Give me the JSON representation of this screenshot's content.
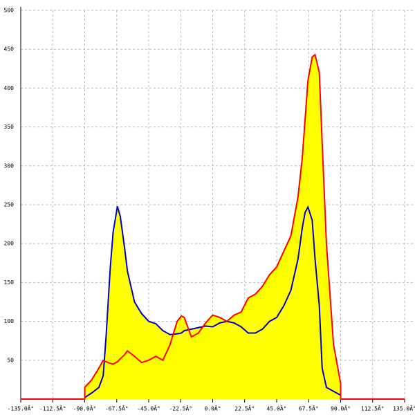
{
  "chart_data": {
    "type": "line",
    "x": [
      -135,
      -90,
      -90,
      -85,
      -80,
      -77,
      -75,
      -72,
      -70,
      -67,
      -65,
      -62,
      -60,
      -55,
      -50,
      -45,
      -40,
      -35,
      -30,
      -25,
      -22,
      -20,
      -15,
      -10,
      -5,
      0,
      5,
      10,
      15,
      20,
      25,
      30,
      35,
      40,
      45,
      50,
      55,
      60,
      63,
      65,
      67,
      70,
      72,
      75,
      77,
      80,
      85,
      90,
      90,
      135
    ],
    "series": [
      {
        "color": "#0000cc",
        "values": [
          0,
          0,
          2,
          8,
          15,
          30,
          80,
          170,
          215,
          248,
          235,
          195,
          165,
          125,
          110,
          100,
          97,
          88,
          83,
          84,
          85,
          88,
          90,
          92,
          94,
          93,
          98,
          100,
          98,
          93,
          85,
          85,
          90,
          100,
          105,
          120,
          140,
          180,
          220,
          240,
          247,
          230,
          180,
          120,
          40,
          15,
          10,
          5,
          0,
          0
        ]
      },
      {
        "color": "#ff0000",
        "values": [
          0,
          0,
          15,
          25,
          40,
          50,
          48,
          46,
          45,
          48,
          52,
          57,
          62,
          55,
          47,
          50,
          55,
          50,
          70,
          100,
          107,
          105,
          80,
          85,
          98,
          108,
          105,
          100,
          108,
          112,
          130,
          135,
          145,
          160,
          170,
          190,
          210,
          260,
          310,
          360,
          410,
          440,
          443,
          420,
          330,
          200,
          70,
          20,
          0,
          0
        ]
      }
    ],
    "fill": "#ffff00",
    "xlim": [
      -135,
      135
    ],
    "xticks": [
      {
        "value": -135,
        "label": "-135.0Â°"
      },
      {
        "value": -112.5,
        "label": "-112.5Â°"
      },
      {
        "value": -90,
        "label": "-90.0Â°"
      },
      {
        "value": -67.5,
        "label": "-67.5Â°"
      },
      {
        "value": -45,
        "label": "-45.0Â°"
      },
      {
        "value": -22.5,
        "label": "-22.5Â°"
      },
      {
        "value": 0,
        "label": "0.0Â°"
      },
      {
        "value": 22.5,
        "label": "22.5Â°"
      },
      {
        "value": 45,
        "label": "45.0Â°"
      },
      {
        "value": 67.5,
        "label": "67.5Â°"
      },
      {
        "value": 90,
        "label": "90.0Â°"
      },
      {
        "value": 112.5,
        "label": "112.5Â°"
      },
      {
        "value": 135,
        "label": "135.0Â°"
      }
    ],
    "ylim": [
      0,
      500
    ],
    "yticks": [
      50,
      100,
      150,
      200,
      250,
      300,
      350,
      400,
      450,
      500
    ],
    "grid": true
  }
}
